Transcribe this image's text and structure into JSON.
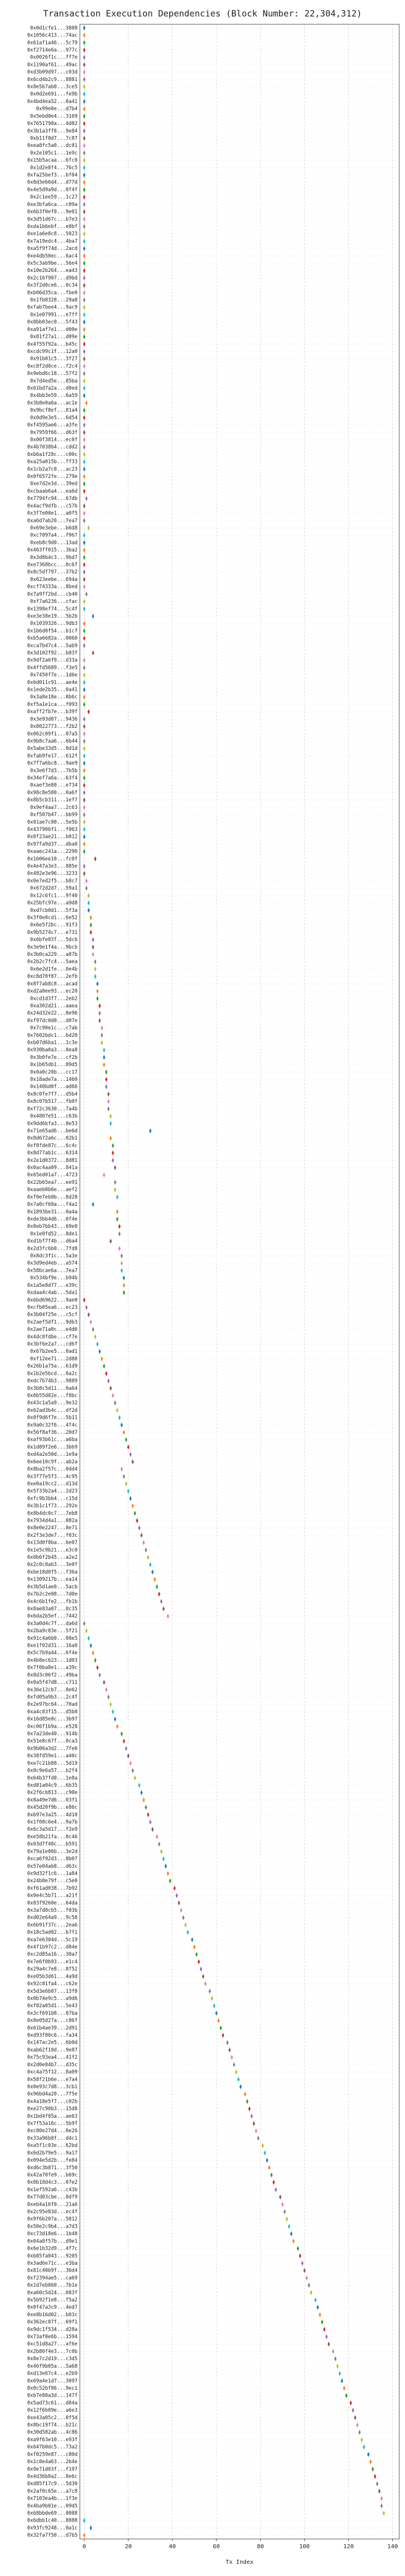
{
  "chart_data": {
    "type": "dot",
    "title": "Transaction Execution Dependencies (Block Number: 22,304,312)",
    "xlabel": "Tx Index",
    "xlim": [
      -2,
      143
    ],
    "xticks": [
      0,
      20,
      40,
      60,
      80,
      100,
      120,
      140
    ],
    "grid": true,
    "palette": [
      "#1f77b4",
      "#ff7f0e",
      "#2ca02c",
      "#d62728",
      "#9467bd",
      "#8c564b",
      "#e377c2",
      "#7f7f7f",
      "#bcbd22",
      "#17becf"
    ],
    "categories": [
      "0x0d1cfe1...3808",
      "0x1056c413...74ac",
      "0x61af1a46...5c79",
      "0xf2714e6a...977c",
      "0x0026f1c...ff7e",
      "0x1190af61...49ac",
      "0xd3b09d97...c03d",
      "0x6cd4b2c9...8881",
      "0x8e5b7ab0...3ce5",
      "0x0d2e691...fe9b",
      "0x4bd4ea52...0a41",
      "0x99e0e...d7b4",
      "0x5ebd0e4...3169",
      "0x7651790a...4d82",
      "0x3b1a3ff8...9e84",
      "0xb11f8d7...7c87",
      "0xea8fc5a0...dc81",
      "0x2e105c1...1e9c",
      "0x15b5acaa...6fc0",
      "0x1d2e8f4...76c5",
      "0xfa25bef3...bf04",
      "0x8d3e66d4...d77d",
      "0x4e5d9a9d...0f4f",
      "0x2c1ee59...1c27",
      "0xe3bfa6ca...c09a",
      "0x6b3f0ef0...9e01",
      "0x3d51d67c...b7e3",
      "0xda1b6ebf...e0bf",
      "0xe1a6e8c8...5023",
      "0x7a19edc4...4ba7",
      "0xa5f9f74d...2acd",
      "0xe4db50ec...6ac4",
      "0x5c3ab9be...56e4",
      "0x10e2b264...ea43",
      "0x2c16f907...d9bd",
      "0x3f2d0ce6...0c34",
      "0xb06d35ca...fbe0",
      "0x1fb8328...29a8",
      "0xfab7bee4...9ac9",
      "0x1e07991...e7ff",
      "0x8bb03ec0...5f43",
      "0xa91af7e1...d00e",
      "0x81f27a1...d09e",
      "0x4f55f92a...b45c",
      "0xcdc99c1f...12a0",
      "0x91b01c5...3f27",
      "0xc8f2d0ce...f2c4",
      "0x9ebd6c18...57f2",
      "0x7d4ed5e...85ba",
      "0x61bd7a2a...d0ed",
      "0x4bb3e59...6a59",
      "0x3b8e0a6a...ac1e",
      "0x9bcf8ef...81a4",
      "0x0d9e3e5...6d54",
      "0xf4595ae6...a3fe",
      "0x7959f66...d63f",
      "0x00f3814...ec0f",
      "0x4b7038b4...cdd2",
      "0xb6a1f28c...c00c",
      "0xa25a015b...ff33",
      "0x1cb2a7c0...ac23",
      "0x0f6572fe...279e",
      "0xe7d2e3d...39ed",
      "0xcbaab6a4...ea6d",
      "0x7794fc94...67db",
      "0x4acf9dfb...c57b",
      "0x3f7e00e1...a0f5",
      "0xa6d7ab20...7ea7",
      "0x69e3ebe...b6d8",
      "0xc7097a4...f967",
      "0xeb8c9d0...13ad",
      "0x463ff015...3ba2",
      "0x3d8b4c3...9bd7",
      "0xe7368bcc...0c6f",
      "0x8c5df797...37b2",
      "0x623eebe...694a",
      "0xcf74333a...8bed",
      "0x7a9ff2bd...cb40",
      "0xf7a6236...cfac",
      "0x1398ef74...5c4f",
      "0xe3e38e19...5b2b",
      "0x1039326...9db3",
      "0x1b6d0f54...b1cf",
      "0xb5a6682a...0060",
      "0xca7b47c4...5ab9",
      "0x3d102f92...b83f",
      "0x9df2a6f9...d33a",
      "0x4ffd5689...f3e5",
      "0x7450f7e...1d6e",
      "0x6d011c91...ae4e",
      "0x1ede2b35...0a41",
      "0x3a8e18e...8b6c",
      "0xf5a1e1ca...f093",
      "0xaff2fb7e...b39f",
      "0x3e93d07...9436",
      "0x8022773...f2b2",
      "0x062c09f1...07a5",
      "0x9b8c7aa6...6b44",
      "0x5abe33d5...0d1d",
      "0xfab9fe17...612f",
      "0x7f7a6bc8...9ae9",
      "0x3e6f7d3...7b5b",
      "0x34ef7a6a...63f4",
      "0xaef3e80...e734",
      "0x98c8e580...0a6f",
      "0x8b5cb311...1ef7",
      "0x9ef4aa7...2c63",
      "0xf507b47...bb99",
      "0x01ae7c80...5e5b",
      "0x437906f1...f063",
      "0x0f23ae21...b012",
      "0x97fa9d37...dba0",
      "0xaaec241a...2290",
      "0x1606ee10...fc0f",
      "0x4e47a3e3...885e",
      "0x482e3e96...3233",
      "0x0e7ed2f5...b8c7",
      "0x672d2d7...59a1",
      "0x12c6fc1...9f40",
      "0x25bfc97e...a9d8",
      "0xd7cb0d1...5f3a",
      "0x3f0e0cd1...6e52",
      "0x6e5f2bc...91f3",
      "0x9b5274c7...e731",
      "0x6bfe03f...5dc6",
      "0x3e9e1f4a...9bcb",
      "0x3b0ca229...a87b",
      "0x2b2c7fc4...5aea",
      "0x6e2d1fe...0e4b",
      "0xc8d70f87...2efb",
      "0x8f7ab8c8...acad",
      "0xd2a8ee93...ec20",
      "0xcd1d3f7...2eb2",
      "0xa302d21...aaea",
      "0x24d32e22...8e96",
      "0xf97dc0d0...d07e",
      "0x7c90e1c...c7ab",
      "0x7602bdc1...bd20",
      "0xb07d6ba1...1c3e",
      "0x930ba0a3...8ea8",
      "0x3b0fe7e...cf2b",
      "0x1b65db1...89d5",
      "0x0a0c20b...cc17",
      "0x18ade7a...1460",
      "0x140bd0f...ad66",
      "0x8c0fe7f7...d5b4",
      "0x8c07b517...fb0f",
      "0xf72c3630...7a4b",
      "0x4807e51...c63b",
      "0x9dd6bfa3...8e53",
      "0x71e65ad6...be6d",
      "0x8d672a6c...02b1",
      "0xf8fde87c...6c4c",
      "0x8d77ab1c...6314",
      "0x2e1d0372...8d81",
      "0x0ac4aa09...841a",
      "0x65ed01a7...4723",
      "0x22b65ea7...ee91",
      "0xaaeb0b6e...aef2",
      "0xf0e7eb0b...8d28",
      "0x7a0cf60a...f4a1",
      "0x1893be31...0a4a",
      "0xde3bb4d6...0f4e",
      "0x8eb7bb43...69e0",
      "0x1e0fd52...8de1",
      "0xd1bf7f4b...d6a4",
      "0x2d3fc6b0...7fd8",
      "0x8dc3f1c...5a3e",
      "0x3d9ed4eb...a574",
      "0x58bcae6a...7ea7",
      "0x534bf9e...b94b",
      "0x1a5e8d77...e39c",
      "0xdaa4c4ab...5da1",
      "0x6bd69622...9ae0",
      "0xcfb05ea6...ec23",
      "0x3b04f25e...c5cf",
      "0x2aef5df1...9db3",
      "0x2ae71a0c...e4d6",
      "0x4dc8fdbe...cf7e",
      "0x3bf6e2a7...cd6f",
      "0x67b2ee5...0ad1",
      "0xf12ee71...2d88",
      "0x26b1a75a...61d9",
      "0x1b2e5bcd...0a2c",
      "0xdc7b74b3...9889",
      "0x3b8c5d11...0a64",
      "0x0b55d02e...f8bc",
      "0x43c1a5a9...9e32",
      "0x62ad3b4c...df2d",
      "0x0f9d6f7e...5b11",
      "0x9a0c32f6...4f4c",
      "0x56f8af36...20d7",
      "0xaf93b61c...a6ba",
      "0x1d89f2e6...3bb9",
      "0xd4a2e50d...1e9a",
      "0x6ee10c9f...ab2a",
      "0x8ba2f57c...0dd4",
      "0x3f77e5f3...4c95",
      "0xe0a19cc2...d13d",
      "0x5f33b2a4...2d23",
      "0xfc9b3bb4...c15d",
      "0x3b1c1f73...292e",
      "0x8b4dc0c7...7eb8",
      "0x7934d4a1...082a",
      "0x8e0e2247...8e71",
      "0x2f3e3de7...f03c",
      "0x13d0f0ba...6e07",
      "0x1e5c9b21...e3c0",
      "0x0b6f2b45...a2e2",
      "0x2c0c8ab3...3e0f",
      "0xbe18d0f5...f36a",
      "0x1309217b...ea14",
      "0x3b5d1ae0...5acb",
      "0x7b2c2e08...7d0e",
      "0x4c6b1fe2...fb1b",
      "0x8ae83a07...8c35",
      "0x6da2b5ef...7442",
      "0x3a0d4c7f...da6d",
      "0x2ba9c83e...5f21",
      "0x91c4a6b0...08e5",
      "0xe1f02d31...16a0",
      "0x5c7b9a44...6f4e",
      "0x4b8ec623...1d03",
      "0x7f0ba8e1...a39c",
      "0x8d3c06f2...49ba",
      "0x0a5f47d8...c711",
      "0x36e12cb7...8e62",
      "0xfd05a9b3...2c4f",
      "0x2e97bc64...70ad",
      "0xa4c83f15...d5b8",
      "0x16d85e0c...3b97",
      "0xc06f1b9a...e528",
      "0x7a23de40...914b",
      "0x51e8c67f...0ca3",
      "0x9b06a3d2...7fe6",
      "0x38fd59e1...a40c",
      "0xe7c21b88...5d19",
      "0x0c9e6a57...b2f4",
      "0x64b37fd0...1e8a",
      "0xd81a04c9...6b35",
      "0x2f6cb813...c90e",
      "0x8a49e7d6...03f1",
      "0x45d20f9b...e86c",
      "0xb97e3a25...4d10",
      "0x1f08c6e4...9a7b",
      "0x6c3a5d17...f2e9",
      "0xe58b21fa...0c46",
      "0x03d7f48c...b591",
      "0x79a1e06b...3e2d",
      "0xca6f92d3...8b07",
      "0x57e04ab8...d63c",
      "0x9d32f1c6...1a84",
      "0x24b8e79f...c5e0",
      "0xf61ad038...7b92",
      "0x0e4c5b71...a21f",
      "0x83f9260e...64da",
      "0x3a7d8cb5...f03b",
      "0xd02e64a9...9c58",
      "0x6b91f37c...2ea6",
      "0x18c5ad02...b7f1",
      "0xa7e6304d...5c19",
      "0x4f1b97c2...d84e",
      "0xc2d85a16...30a7",
      "0x7e6f0b93...e1c4",
      "0x29a4c7e8...8f52",
      "0xe05b3d61...4a9d",
      "0x92c81fa4...c62e",
      "0x5d3e6b07...13f8",
      "0x0b74e9c5...a9d6",
      "0xf82a05d1...5e43",
      "0x3cf691b8...07ba",
      "0x8e05d27a...c86f",
      "0x61b4ae39...2d91",
      "0xd93f80c6...fa34",
      "0x147ac2e5...6b0d",
      "0xab62f10d...9e87",
      "0x75c93ea4...41f2",
      "0x2d0e84b7...d35c",
      "0xc4a75f12...8a09",
      "0x58f21b6e...e7a4",
      "0x0e93c7d8...3cb1",
      "0x96bd4a20...7f5e",
      "0x4a18e5f7...c02b",
      "0xe27c90b3...15d8",
      "0x1bd4f85a...ae63",
      "0x7f53a16c...5b9f",
      "0xc80e27d4...0e26",
      "0x33a96b8f...d4c1",
      "0xa5f1c03e...62bd",
      "0x6d2b79e5...9a17",
      "0x094e5d2b...fe84",
      "0xd6c3b871...3f50",
      "0x42a70fe9...b69c",
      "0x8b18d4c3...07e2",
      "0x1ef592a6...c43b",
      "0x77d03cbe...8df9",
      "0xeb4a16f0...21a6",
      "0x2c95e83d...ec4f",
      "0x9f6b207a...5812",
      "0x50e2c9b4...a7d3",
      "0xc73d18e6...1b48",
      "0x04a8f57b...d9e1",
      "0x6e1b32d9...4f7c",
      "0xb85fa043...9205",
      "0x3ad6e71c...e3ba",
      "0x81c40b9f...36d4",
      "0xf2394ae5...ca69",
      "0x1d7eb860...7b1e",
      "0xa60c5d24...083f",
      "0x5b92f1e8...f5a2",
      "0x0f47a3c9...4ed7",
      "0xe8b16d02...b03c",
      "0x362ec87f...69f1",
      "0x9dc1f534...d28a",
      "0x73af0e6b...1594",
      "0xc51d8a27...af6e",
      "0x2b80f4e3...7c0b",
      "0x8e7c2d19...c3d5",
      "0x46f9b05a...5a68",
      "0xd13e67c4...e2b9",
      "0x69a4e1d7...3097",
      "0x0c52bf86...9ec1",
      "0xb7e80a3d...147f",
      "0x5ad73c61...d84a",
      "0x12f6b89e...a6e3",
      "0xe43a05c2...0f5d",
      "0x8bc19f74...b21c",
      "0x30d582ab...4c86",
      "0xa9f63e10...e93f",
      "0x647b0dc5...73a2",
      "0xf0259e87...c80d",
      "0x1c8e4a63...2b4e",
      "0x9e71d03f...f197",
      "0x4d36b8a2...8e6c",
      "0xd85f17c9...5d30",
      "0x2af0c65e...a7c8",
      "0x7103ea4b...1f3e",
      "0x4ba9b01e...09d5",
      "0x68bbde69...8088",
      "0x6dbb1c40...8888",
      "0x93fc9248...0a1c",
      "0x32fa7f50...d7b5"
    ],
    "values": [
      0,
      0,
      0,
      0,
      0,
      0,
      0,
      0,
      0,
      0,
      0,
      0,
      0,
      0,
      0,
      0,
      0,
      0,
      0,
      0,
      0,
      0,
      0,
      0,
      0,
      0,
      0,
      0,
      0,
      0,
      0,
      0,
      0,
      0,
      0,
      0,
      0,
      0,
      0,
      0,
      0,
      0,
      0,
      0,
      0,
      0,
      0,
      0,
      0,
      0,
      0,
      1,
      0,
      0,
      0,
      0,
      0,
      0,
      0,
      0,
      0,
      0,
      0,
      0,
      1,
      0,
      0,
      0,
      2,
      0,
      0,
      0,
      0,
      0,
      0,
      0,
      0,
      1,
      0,
      0,
      4,
      0,
      0,
      0,
      0,
      4,
      0,
      0,
      0,
      0,
      0,
      0,
      0,
      2,
      0,
      0,
      0,
      0,
      0,
      0,
      0,
      0,
      0,
      0,
      0,
      0,
      0,
      0,
      0,
      0,
      0,
      0,
      0,
      5,
      0,
      0,
      1,
      1,
      2,
      2,
      2,
      3,
      3,
      3,
      4,
      4,
      4,
      5,
      5,
      5,
      6,
      6,
      6,
      7,
      7,
      7,
      8,
      8,
      8,
      9,
      9,
      9,
      10,
      10,
      10,
      11,
      11,
      11,
      12,
      12,
      30,
      12,
      13,
      13,
      13,
      14,
      9,
      14,
      14,
      15,
      4,
      15,
      15,
      16,
      16,
      12,
      16,
      17,
      17,
      17,
      18,
      18,
      18,
      0,
      1,
      2,
      3,
      4,
      5,
      6,
      7,
      8,
      9,
      10,
      11,
      12,
      13,
      14,
      15,
      16,
      17,
      18,
      19,
      20,
      21,
      22,
      17,
      18,
      19,
      20,
      21,
      22,
      23,
      24,
      25,
      26,
      27,
      28,
      29,
      30,
      31,
      32,
      33,
      34,
      35,
      36,
      38,
      0,
      1,
      2,
      3,
      4,
      5,
      6,
      7,
      9,
      10,
      11,
      12,
      13,
      14,
      15,
      17,
      18,
      19,
      20,
      21,
      22,
      23,
      25,
      26,
      27,
      28,
      29,
      30,
      31,
      33,
      34,
      35,
      36,
      37,
      38,
      39,
      41,
      42,
      43,
      44,
      45,
      46,
      47,
      49,
      50,
      51,
      52,
      53,
      54,
      55,
      57,
      58,
      59,
      60,
      61,
      62,
      63,
      65,
      66,
      67,
      68,
      69,
      70,
      71,
      73,
      74,
      75,
      76,
      77,
      78,
      79,
      81,
      82,
      83,
      84,
      85,
      86,
      87,
      89,
      90,
      91,
      92,
      93,
      94,
      95,
      97,
      98,
      99,
      100,
      101,
      102,
      103,
      105,
      106,
      107,
      108,
      109,
      110,
      111,
      113,
      114,
      115,
      116,
      117,
      118,
      119,
      121,
      122,
      123,
      124,
      125,
      126,
      127,
      129,
      130,
      131,
      132,
      133,
      134,
      135,
      135,
      136,
      0,
      3,
      0
    ]
  }
}
